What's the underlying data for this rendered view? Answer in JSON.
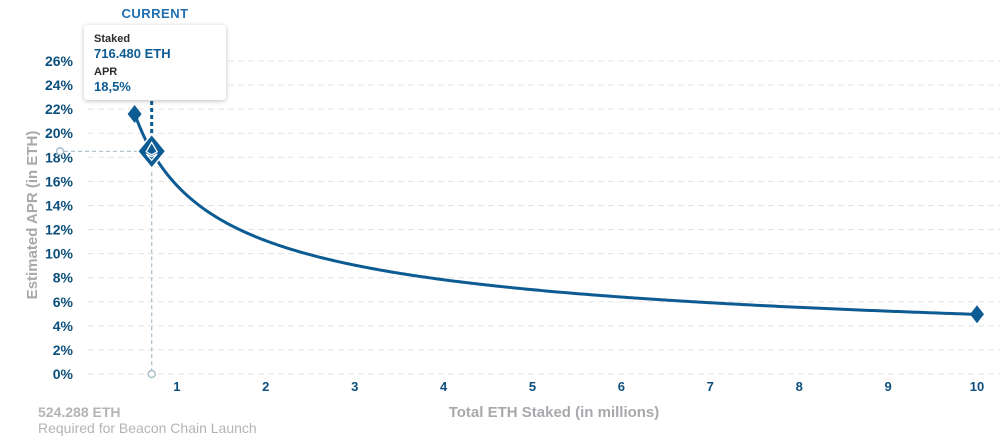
{
  "chart_data": {
    "type": "line",
    "title": "",
    "xlabel": "Total ETH Staked  (in millions)",
    "ylabel": "Estimated APR (in ETH)",
    "xlim": [
      0,
      10
    ],
    "ylim": [
      0,
      26
    ],
    "x_ticks": [
      1,
      2,
      3,
      4,
      5,
      6,
      7,
      8,
      9,
      10
    ],
    "y_ticks": [
      "0%",
      "2%",
      "4%",
      "6%",
      "8%",
      "10%",
      "12%",
      "14%",
      "16%",
      "18%",
      "20%",
      "22%",
      "24%",
      "26%"
    ],
    "series": [
      {
        "x": [
          0.524288,
          0.71648,
          1.0,
          1.5,
          2,
          3,
          4,
          5,
          6,
          7,
          8,
          9,
          10
        ],
        "y": [
          21.6,
          18.5,
          15.7,
          12.8,
          11.1,
          9.06,
          7.85,
          7.02,
          6.41,
          5.93,
          5.55,
          5.23,
          4.96
        ],
        "color": "#0d5b93"
      }
    ],
    "current": {
      "label": "CURRENT",
      "x": 0.71648,
      "y": 18.5
    },
    "launch_point": {
      "x": 0.524288,
      "y": 21.6
    },
    "end_point": {
      "x": 10,
      "y": 4.96
    },
    "gridlines": "horizontal dashed"
  },
  "tooltip": {
    "staked_label": "Staked",
    "staked_value": "716.480 ETH",
    "apr_label": "APR",
    "apr_value": "18,5%"
  },
  "launch": {
    "value": "524.288 ETH",
    "caption": "Required for Beacon Chain Launch"
  },
  "colors": {
    "line": "#0d5b93",
    "tick": "#0d4f7c",
    "grid": "#e3e3e3",
    "guide": "#a9bfcc",
    "axis_title": "#a7a9ac"
  }
}
